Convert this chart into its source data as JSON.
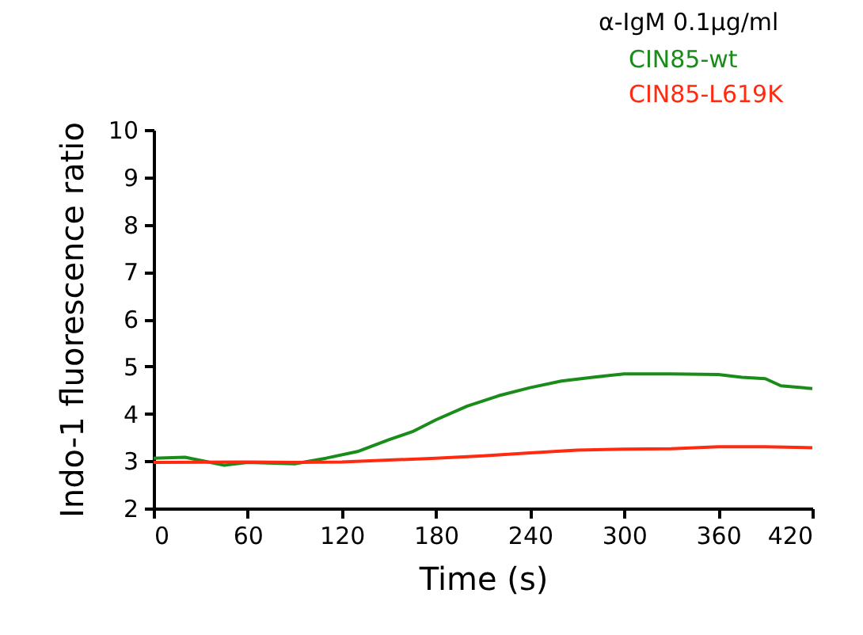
{
  "chart_data": {
    "type": "line",
    "xlabel": "Time (s)",
    "ylabel": "Indo-1 fluorescence ratio",
    "legend_title": "α-IgM 0.1μg/ml",
    "legend": "top right",
    "grid": false,
    "marker": "none",
    "line_style": "solid",
    "xlim": [
      0,
      420
    ],
    "xticks": [
      0,
      60,
      120,
      180,
      240,
      300,
      360,
      420
    ],
    "ylim": [
      2,
      10
    ],
    "yticks": [
      2,
      3,
      4,
      5,
      6,
      7,
      8,
      9,
      10
    ],
    "series": [
      {
        "name": "CIN85-wt",
        "color": "#1a8c1a",
        "x": [
          0,
          20,
          45,
          60,
          90,
          110,
          130,
          150,
          165,
          180,
          200,
          220,
          240,
          260,
          280,
          300,
          330,
          360,
          375,
          390,
          400,
          420
        ],
        "values": [
          3.06,
          3.08,
          2.91,
          2.97,
          2.94,
          3.06,
          3.2,
          3.45,
          3.62,
          3.87,
          4.16,
          4.38,
          4.55,
          4.69,
          4.77,
          4.84,
          4.84,
          4.83,
          4.77,
          4.74,
          4.59,
          4.53
        ]
      },
      {
        "name": "CIN85-L619K",
        "color": "#ff2a10",
        "x": [
          0,
          60,
          90,
          120,
          150,
          180,
          210,
          240,
          270,
          300,
          330,
          360,
          390,
          420
        ],
        "values": [
          2.97,
          2.98,
          2.97,
          2.98,
          3.02,
          3.06,
          3.11,
          3.17,
          3.23,
          3.25,
          3.26,
          3.3,
          3.3,
          3.28
        ]
      }
    ]
  }
}
